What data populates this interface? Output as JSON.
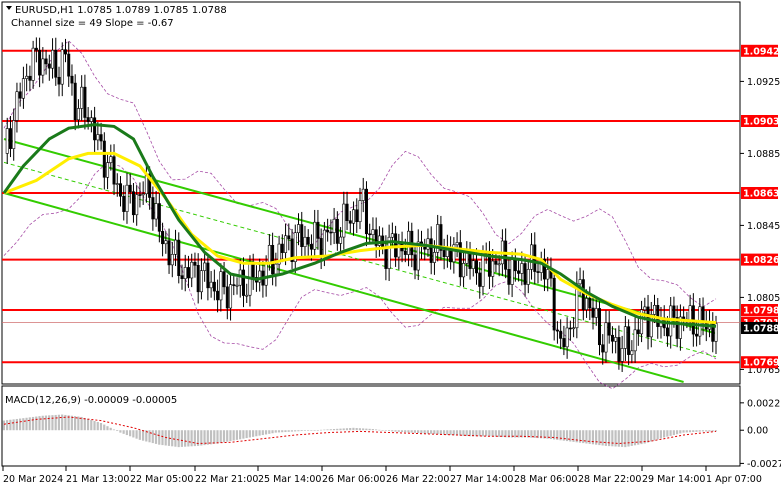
{
  "header": {
    "symbol_line": "EURUSD,H1  1.0785 1.0789 1.0785 1.0788",
    "channel_line": "Channel size = 49 Slope = -0.67",
    "triangle_icon": "triangle-down-icon"
  },
  "macd_label": "MACD(12,26,9) -0.00009 -0.00005",
  "colors": {
    "background": "#ffffff",
    "level_line": "#ff0000",
    "price_tag_bg": "#ff0000",
    "current_price_bg": "#000000",
    "candle": "#000000",
    "ma_fast": "#ffee00",
    "ma_slow": "#1a7a1a",
    "channel": "#33cc00",
    "envelope": "#a64ca6",
    "macd_hist": "#c0c0c0",
    "macd_signal": "#e00000"
  },
  "chart_data": [
    {
      "type": "candlestick",
      "title": "EURUSD,H1",
      "ylim": [
        1.0758,
        1.0968
      ],
      "yticks": [
        "1.0925",
        "1.0885",
        "1.0845",
        "1.0805",
        "1.0765"
      ],
      "yticks_values": [
        1.0925,
        1.0885,
        1.0845,
        1.0805,
        1.0765
      ],
      "xticks": [
        "20 Mar 2024",
        "21 Mar 13:00",
        "22 Mar 05:00",
        "22 Mar 21:00",
        "25 Mar 14:00",
        "26 Mar 06:00",
        "26 Mar 22:00",
        "27 Mar 14:00",
        "28 Mar 06:00",
        "28 Mar 22:00",
        "29 Mar 14:00",
        "1 Apr 07:00"
      ],
      "levels": [
        {
          "label": "1.0942",
          "value": 1.0942
        },
        {
          "label": "1.0903",
          "value": 1.0903
        },
        {
          "label": "1.0863",
          "value": 1.0863
        },
        {
          "label": "1.0826",
          "value": 1.0826
        },
        {
          "label": "1.0798",
          "value": 1.0798
        },
        {
          "label": "1.0769",
          "value": 1.0769
        }
      ],
      "hidden_tag": {
        "label": "1.0791",
        "value": 1.0791
      },
      "current_price": {
        "label": "1.0788",
        "value": 1.0788
      },
      "close_path": [
        [
          0,
          1.0885
        ],
        [
          4,
          1.0912
        ],
        [
          8,
          1.0935
        ],
        [
          12,
          1.0937
        ],
        [
          16,
          1.0931
        ],
        [
          19,
          1.0938
        ],
        [
          22,
          1.0912
        ],
        [
          26,
          1.0908
        ],
        [
          29,
          1.089
        ],
        [
          32,
          1.088
        ],
        [
          35,
          1.0866
        ],
        [
          38,
          1.0858
        ],
        [
          42,
          1.0862
        ],
        [
          45,
          1.0866
        ],
        [
          48,
          1.084
        ],
        [
          52,
          1.0828
        ],
        [
          56,
          1.0818
        ],
        [
          60,
          1.082
        ],
        [
          64,
          1.0812
        ],
        [
          68,
          1.0808
        ],
        [
          72,
          1.0812
        ],
        [
          76,
          1.0814
        ],
        [
          80,
          1.0819
        ],
        [
          84,
          1.0828
        ],
        [
          88,
          1.0836
        ],
        [
          92,
          1.0838
        ],
        [
          96,
          1.0836
        ],
        [
          100,
          1.084
        ],
        [
          104,
          1.0844
        ],
        [
          108,
          1.0852
        ],
        [
          111,
          1.0856
        ],
        [
          114,
          1.0837
        ],
        [
          118,
          1.0832
        ],
        [
          122,
          1.0834
        ],
        [
          126,
          1.083
        ],
        [
          130,
          1.0832
        ],
        [
          134,
          1.0834
        ],
        [
          138,
          1.083
        ],
        [
          142,
          1.0826
        ],
        [
          146,
          1.082
        ],
        [
          150,
          1.0824
        ],
        [
          154,
          1.0826
        ],
        [
          158,
          1.0818
        ],
        [
          162,
          1.0822
        ],
        [
          166,
          1.0824
        ],
        [
          169,
          1.081
        ],
        [
          172,
          1.0775
        ],
        [
          175,
          1.079
        ],
        [
          178,
          1.081
        ],
        [
          181,
          1.08
        ],
        [
          184,
          1.0784
        ],
        [
          188,
          1.0782
        ],
        [
          191,
          1.0776
        ],
        [
          194,
          1.078
        ],
        [
          198,
          1.0796
        ],
        [
          202,
          1.0792
        ],
        [
          206,
          1.079
        ],
        [
          210,
          1.0793
        ],
        [
          214,
          1.0791
        ],
        [
          218,
          1.0789
        ],
        [
          220,
          1.0788
        ]
      ],
      "ma_fast": [
        [
          0,
          1.0863
        ],
        [
          10,
          1.087
        ],
        [
          20,
          1.0882
        ],
        [
          26,
          1.0885
        ],
        [
          34,
          1.0885
        ],
        [
          42,
          1.0878
        ],
        [
          50,
          1.086
        ],
        [
          58,
          1.084
        ],
        [
          66,
          1.0828
        ],
        [
          74,
          1.0824
        ],
        [
          82,
          1.0824
        ],
        [
          90,
          1.0827
        ],
        [
          100,
          1.0828
        ],
        [
          110,
          1.0831
        ],
        [
          120,
          1.0833
        ],
        [
          130,
          1.0834
        ],
        [
          140,
          1.0832
        ],
        [
          150,
          1.083
        ],
        [
          160,
          1.0829
        ],
        [
          166,
          1.0826
        ],
        [
          172,
          1.0815
        ],
        [
          180,
          1.0807
        ],
        [
          188,
          1.0801
        ],
        [
          196,
          1.0796
        ],
        [
          204,
          1.0793
        ],
        [
          212,
          1.0792
        ],
        [
          220,
          1.0791
        ]
      ],
      "ma_slow": [
        [
          0,
          1.0863
        ],
        [
          6,
          1.0878
        ],
        [
          14,
          1.0893
        ],
        [
          20,
          1.0899
        ],
        [
          28,
          1.0901
        ],
        [
          34,
          1.09
        ],
        [
          40,
          1.0893
        ],
        [
          46,
          1.0872
        ],
        [
          54,
          1.0848
        ],
        [
          62,
          1.083
        ],
        [
          70,
          1.0818
        ],
        [
          78,
          1.0815
        ],
        [
          86,
          1.0818
        ],
        [
          96,
          1.0824
        ],
        [
          104,
          1.083
        ],
        [
          112,
          1.0835
        ],
        [
          120,
          1.0836
        ],
        [
          130,
          1.0834
        ],
        [
          140,
          1.0831
        ],
        [
          150,
          1.0828
        ],
        [
          160,
          1.0826
        ],
        [
          166,
          1.0824
        ],
        [
          172,
          1.0818
        ],
        [
          180,
          1.0808
        ],
        [
          188,
          1.08
        ],
        [
          196,
          1.0794
        ],
        [
          204,
          1.0791
        ],
        [
          212,
          1.079
        ],
        [
          220,
          1.0789
        ]
      ],
      "channel": {
        "upper": [
          [
            0,
            1.0893
          ],
          [
            220,
            1.0785
          ]
        ],
        "lower": [
          [
            0,
            1.0863
          ],
          [
            210,
            1.0758
          ]
        ],
        "middle": [
          [
            0,
            1.088
          ],
          [
            220,
            1.0772
          ]
        ]
      }
    },
    {
      "type": "bar",
      "title": "MACD(12,26,9)",
      "ylim": [
        -0.0028,
        0.0035
      ],
      "yticks": [
        "0.00227",
        "0.00",
        "-0.00275"
      ],
      "yticks_values": [
        0.00227,
        0.0,
        -0.00275
      ],
      "histogram": [
        [
          0,
          0.0008
        ],
        [
          6,
          0.001
        ],
        [
          12,
          0.0012
        ],
        [
          18,
          0.0013
        ],
        [
          24,
          0.0011
        ],
        [
          30,
          0.0006
        ],
        [
          36,
          -0.0002
        ],
        [
          42,
          -0.0008
        ],
        [
          48,
          -0.0012
        ],
        [
          54,
          -0.0014
        ],
        [
          60,
          -0.0013
        ],
        [
          66,
          -0.0011
        ],
        [
          72,
          -0.0008
        ],
        [
          78,
          -0.0005
        ],
        [
          84,
          -0.0002
        ],
        [
          90,
          -0.0001
        ],
        [
          96,
          0.0
        ],
        [
          102,
          0.0001
        ],
        [
          108,
          0.0002
        ],
        [
          114,
          0.0001
        ],
        [
          120,
          -0.0001
        ],
        [
          126,
          -0.0002
        ],
        [
          132,
          -0.0003
        ],
        [
          138,
          -0.0004
        ],
        [
          144,
          -0.0005
        ],
        [
          150,
          -0.0005
        ],
        [
          156,
          -0.0006
        ],
        [
          162,
          -0.0006
        ],
        [
          168,
          -0.0007
        ],
        [
          174,
          -0.0009
        ],
        [
          180,
          -0.0011
        ],
        [
          186,
          -0.0013
        ],
        [
          192,
          -0.0014
        ],
        [
          198,
          -0.0011
        ],
        [
          204,
          -0.0006
        ],
        [
          210,
          -0.0002
        ],
        [
          216,
          -0.0001
        ],
        [
          220,
          -0.0001
        ]
      ],
      "signal": [
        [
          0,
          0.0005
        ],
        [
          10,
          0.0009
        ],
        [
          20,
          0.0011
        ],
        [
          30,
          0.0008
        ],
        [
          40,
          0.0002
        ],
        [
          50,
          -0.0006
        ],
        [
          60,
          -0.0011
        ],
        [
          70,
          -0.001
        ],
        [
          80,
          -0.0007
        ],
        [
          90,
          -0.0004
        ],
        [
          100,
          -0.0002
        ],
        [
          110,
          -0.0001
        ],
        [
          120,
          -0.0002
        ],
        [
          130,
          -0.0003
        ],
        [
          140,
          -0.0004
        ],
        [
          150,
          -0.0005
        ],
        [
          160,
          -0.0005
        ],
        [
          170,
          -0.0006
        ],
        [
          180,
          -0.0009
        ],
        [
          190,
          -0.0011
        ],
        [
          200,
          -0.0009
        ],
        [
          210,
          -0.0004
        ],
        [
          220,
          -0.0001
        ]
      ]
    }
  ]
}
